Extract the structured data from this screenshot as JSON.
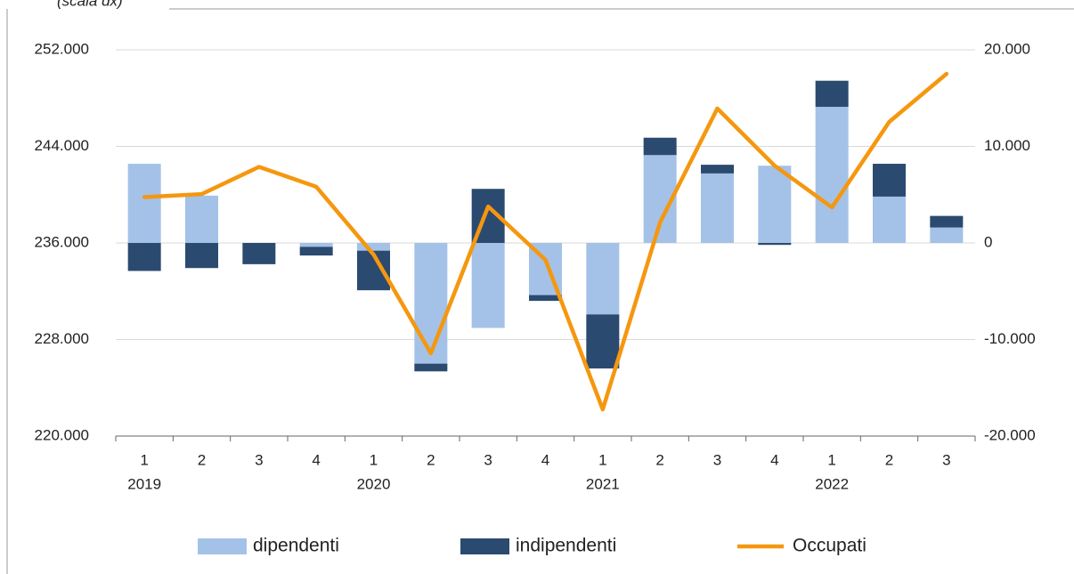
{
  "chart_data": {
    "type": "bar",
    "annotation": "(scala dx)",
    "categories": [
      "1",
      "2",
      "3",
      "4",
      "1",
      "2",
      "3",
      "4",
      "1",
      "2",
      "3",
      "4",
      "1",
      "2",
      "3"
    ],
    "year_labels": [
      "2019",
      null,
      null,
      null,
      "2020",
      null,
      null,
      null,
      "2021",
      null,
      null,
      null,
      "2022",
      null,
      null
    ],
    "series": [
      {
        "name": "dipendenti",
        "type": "bar",
        "axis": "y2",
        "color": "#a4c2e8",
        "values": [
          8200,
          4900,
          0,
          -400,
          -800,
          -12500,
          -8800,
          -5400,
          -7400,
          9100,
          7200,
          8000,
          14100,
          4800,
          1600
        ]
      },
      {
        "name": "indipendenti",
        "type": "bar",
        "axis": "y2",
        "color": "#2b4a6f",
        "values": [
          -2900,
          -2600,
          -2200,
          -900,
          -4100,
          -800,
          5600,
          -600,
          -5600,
          1800,
          900,
          -200,
          2700,
          3400,
          1200
        ]
      },
      {
        "name": "Occupati",
        "type": "line",
        "axis": "y",
        "color": "#f5970f",
        "values": [
          239800,
          240050,
          242300,
          240650,
          235040,
          226860,
          239020,
          234600,
          222210,
          237700,
          247140,
          242400,
          238950,
          246030,
          250010
        ]
      }
    ],
    "ylim": [
      220000,
      252000
    ],
    "yticks": [
      {
        "value": 220000,
        "label": "220.000"
      },
      {
        "value": 228000,
        "label": "228.000"
      },
      {
        "value": 236000,
        "label": "236.000"
      },
      {
        "value": 244000,
        "label": "244.000"
      },
      {
        "value": 252000,
        "label": "252.000"
      }
    ],
    "y2lim": [
      -20000,
      20000
    ],
    "y2ticks": [
      {
        "value": -20000,
        "label": "-20.000"
      },
      {
        "value": -10000,
        "label": "-10.000"
      },
      0,
      {
        "value": 10000,
        "label": "10.000"
      },
      {
        "value": 20000,
        "label": "20.000"
      }
    ],
    "grid": true
  }
}
